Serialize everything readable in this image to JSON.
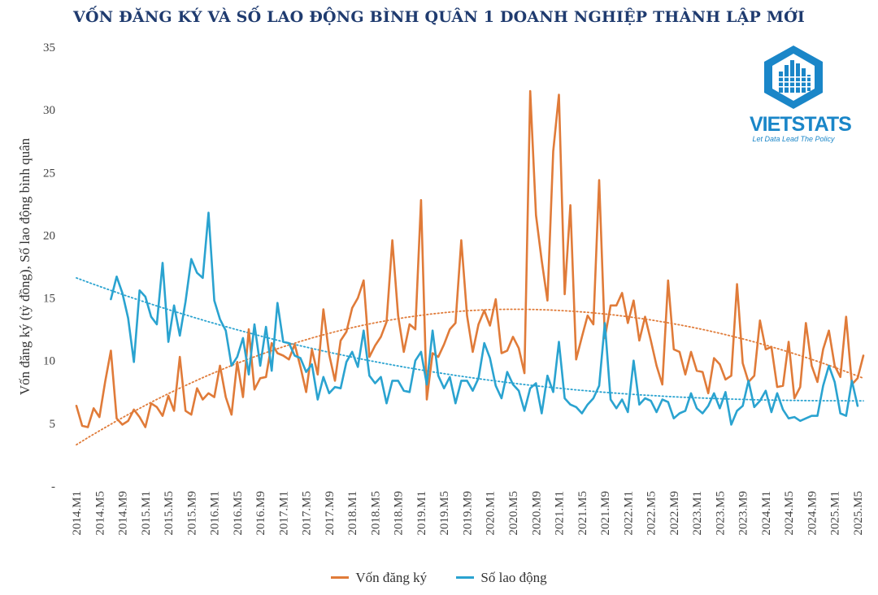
{
  "title": "VỐN ĐĂNG KÝ VÀ SỐ LAO ĐỘNG BÌNH QUÂN 1 DOANH NGHIỆP THÀNH LẬP MỚI",
  "logo": {
    "word": "VIETSTATS",
    "tagline": "Let Data Lead The Policy"
  },
  "legend": {
    "capital": "Vốn đăng ký",
    "labor": "Số lao động"
  },
  "colors": {
    "capital": "#e07b39",
    "labor": "#2aa3d0",
    "title": "#1f3b6f"
  },
  "chart_data": {
    "type": "line",
    "title": "VỐN ĐĂNG KÝ VÀ SỐ LAO ĐỘNG BÌNH QUÂN 1 DOANH NGHIỆP THÀNH LẬP MỚI",
    "ylabel": "Vốn đăng ký (tỷ đồng), Số lao động bình quân",
    "ylim": [
      0,
      35
    ],
    "yticks": [
      "-",
      "5",
      "10",
      "15",
      "20",
      "25",
      "30",
      "35"
    ],
    "x_tick_labels": [
      "2014.M1",
      "2014.M5",
      "2014.M9",
      "2015.M1",
      "2015.M5",
      "2015.M9",
      "2016.M1",
      "2016.M5",
      "2016.M9",
      "2017.M1",
      "2017.M5",
      "2017.M9",
      "2018.M1",
      "2018.M5",
      "2018.M9",
      "2019.M1",
      "2019.M5",
      "2019.M9",
      "2020.M1",
      "2020.M5",
      "2020.M9",
      "2021.M1",
      "2021.M5",
      "2021.M9",
      "2022.M1",
      "2022.M5",
      "2022.M9",
      "2023.M1",
      "2023.M5",
      "2023.M9",
      "2024.M1",
      "2024.M5",
      "2024.M9",
      "2025.M1",
      "2025.M5"
    ],
    "x_start": "2014.M1",
    "series": [
      {
        "name": "Vốn đăng ký",
        "start_index": 0,
        "values": [
          6.4,
          4.8,
          4.7,
          6.2,
          5.5,
          8.3,
          10.8,
          5.4,
          4.9,
          5.2,
          6.1,
          5.5,
          4.7,
          6.6,
          6.3,
          5.6,
          7.2,
          6.0,
          10.3,
          6.0,
          5.7,
          7.8,
          6.9,
          7.4,
          7.1,
          9.6,
          7.1,
          5.7,
          9.9,
          7.1,
          12.5,
          7.7,
          8.6,
          8.7,
          11.4,
          10.6,
          10.4,
          10.1,
          11.3,
          9.5,
          7.5,
          10.9,
          8.9,
          14.1,
          10.5,
          8.4,
          11.6,
          12.3,
          14.2,
          15.0,
          16.4,
          10.3,
          11.2,
          11.9,
          13.1,
          19.6,
          13.6,
          10.7,
          12.9,
          12.5,
          22.8,
          6.9,
          10.6,
          10.3,
          11.3,
          12.5,
          13.0,
          19.6,
          13.6,
          10.7,
          12.9,
          14.0,
          12.8,
          14.9,
          10.6,
          10.8,
          11.9,
          11.0,
          9.0,
          31.5,
          21.6,
          18.0,
          14.8,
          26.7,
          31.2,
          15.3,
          22.4,
          10.1,
          11.9,
          13.6,
          12.9,
          24.4,
          11.8,
          14.4,
          14.4,
          15.4,
          13.0,
          14.8,
          11.6,
          13.5,
          11.6,
          9.6,
          8.1,
          16.4,
          10.9,
          10.7,
          8.9,
          10.7,
          9.2,
          9.1,
          7.4,
          10.2,
          9.7,
          8.5,
          8.8,
          16.1,
          9.8,
          8.3,
          8.8,
          13.2,
          10.9,
          11.1,
          7.9,
          8.0,
          11.5,
          7.0,
          7.9,
          13.0,
          9.6,
          8.3,
          10.9,
          12.4,
          9.6,
          8.7,
          13.5,
          8.1,
          8.6,
          10.4
        ]
      },
      {
        "name": "Số lao động",
        "start_index": 6,
        "values": [
          14.9,
          16.7,
          15.4,
          13.4,
          9.9,
          15.6,
          15.1,
          13.5,
          12.9,
          17.8,
          11.5,
          14.4,
          12.0,
          14.7,
          18.1,
          17.0,
          16.6,
          21.8,
          14.8,
          13.3,
          12.4,
          9.6,
          10.3,
          11.8,
          8.9,
          12.9,
          9.6,
          12.7,
          9.2,
          14.6,
          11.5,
          11.4,
          10.4,
          10.2,
          9.1,
          9.7,
          6.9,
          8.7,
          7.4,
          7.9,
          7.8,
          9.9,
          10.7,
          9.5,
          12.4,
          8.8,
          8.2,
          8.7,
          6.6,
          8.4,
          8.4,
          7.6,
          7.5,
          10.0,
          10.7,
          8.1,
          12.4,
          8.8,
          7.8,
          8.7,
          6.6,
          8.4,
          8.4,
          7.6,
          8.6,
          11.4,
          10.2,
          8.0,
          7.0,
          9.1,
          8.1,
          7.6,
          6.0,
          7.8,
          8.2,
          5.8,
          8.8,
          7.5,
          11.5,
          7.0,
          6.5,
          6.3,
          5.8,
          6.5,
          7.0,
          8.0,
          13.0,
          6.9,
          6.2,
          6.9,
          5.9,
          10.0,
          6.5,
          7.0,
          6.8,
          5.9,
          6.9,
          6.7,
          5.4,
          5.8,
          6.0,
          7.4,
          6.2,
          5.8,
          6.4,
          7.4,
          6.2,
          7.5,
          4.9,
          6.0,
          6.4,
          8.4,
          6.3,
          6.8,
          7.6,
          5.9,
          7.4,
          6.1,
          5.4,
          5.5,
          5.2,
          5.4,
          5.6,
          5.6,
          8.0,
          9.6,
          8.3,
          5.8,
          5.6,
          8.4,
          6.4
        ]
      }
    ],
    "trendlines": [
      {
        "series": "Vốn đăng ký",
        "type": "polynomial",
        "start": 3.3,
        "peak": 14.1,
        "end": 8.6
      },
      {
        "series": "Số lao động",
        "type": "power",
        "start": 16.6,
        "end": 6.8
      }
    ]
  }
}
